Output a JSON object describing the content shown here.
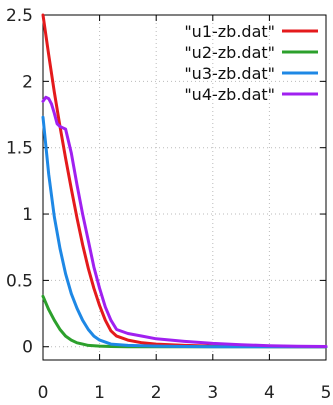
{
  "chart_data": {
    "type": "line",
    "title": "",
    "xlabel": "",
    "ylabel": "",
    "xlim": [
      0,
      5
    ],
    "ylim": [
      -0.1,
      2.5
    ],
    "grid": true,
    "legend_position": "top-right",
    "x_ticks": [
      {
        "value": 0,
        "label": "0"
      },
      {
        "value": 1,
        "label": "1"
      },
      {
        "value": 2,
        "label": "2"
      },
      {
        "value": 3,
        "label": "3"
      },
      {
        "value": 4,
        "label": "4"
      },
      {
        "value": 5,
        "label": "5"
      }
    ],
    "y_ticks": [
      {
        "value": 0,
        "label": "0"
      },
      {
        "value": 0.5,
        "label": "0.5"
      },
      {
        "value": 1,
        "label": "1"
      },
      {
        "value": 1.5,
        "label": "1.5"
      },
      {
        "value": 2,
        "label": "2"
      },
      {
        "value": 2.5,
        "label": "2.5"
      }
    ],
    "series": [
      {
        "name": "\"u1-zb.dat\"",
        "color": "#e41a1c",
        "x": [
          0,
          0.1,
          0.2,
          0.3,
          0.4,
          0.5,
          0.6,
          0.7,
          0.8,
          0.9,
          1.0,
          1.1,
          1.2,
          1.3,
          1.5,
          1.75,
          2.0,
          2.5,
          3.0,
          3.5,
          4.0,
          4.5,
          5.0
        ],
        "values": [
          2.5,
          2.2,
          1.92,
          1.66,
          1.42,
          1.19,
          0.97,
          0.77,
          0.59,
          0.44,
          0.31,
          0.2,
          0.12,
          0.08,
          0.05,
          0.03,
          0.02,
          0.01,
          0.005,
          0.002,
          0.001,
          0.0,
          0.0
        ]
      },
      {
        "name": "\"u2-zb.dat\"",
        "color": "#2ca02c",
        "x": [
          0,
          0.1,
          0.2,
          0.3,
          0.4,
          0.5,
          0.6,
          0.7,
          0.8,
          1.0,
          1.2,
          1.5,
          2.0,
          3.0,
          4.0,
          5.0
        ],
        "values": [
          0.38,
          0.28,
          0.2,
          0.13,
          0.08,
          0.05,
          0.03,
          0.02,
          0.01,
          0.005,
          0.002,
          0.0,
          0.0,
          0.0,
          0.0,
          0.0
        ]
      },
      {
        "name": "\"u3-zb.dat\"",
        "color": "#1e88e5",
        "x": [
          0,
          0.1,
          0.2,
          0.3,
          0.4,
          0.5,
          0.6,
          0.7,
          0.8,
          0.9,
          1.0,
          1.2,
          1.5,
          2.0,
          2.5,
          3.0,
          4.0,
          5.0
        ],
        "values": [
          1.73,
          1.3,
          0.98,
          0.74,
          0.55,
          0.4,
          0.29,
          0.2,
          0.13,
          0.08,
          0.05,
          0.02,
          0.01,
          0.005,
          0.002,
          0.0,
          0.0,
          0.0
        ]
      },
      {
        "name": "\"u4-zb.dat\"",
        "color": "#a020f0",
        "x": [
          0,
          0.05,
          0.1,
          0.15,
          0.2,
          0.25,
          0.3,
          0.35,
          0.4,
          0.5,
          0.6,
          0.7,
          0.8,
          0.9,
          1.0,
          1.1,
          1.2,
          1.3,
          1.5,
          1.75,
          2.0,
          2.5,
          3.0,
          3.5,
          4.0,
          4.5,
          5.0
        ],
        "values": [
          1.85,
          1.88,
          1.87,
          1.83,
          1.76,
          1.68,
          1.66,
          1.65,
          1.64,
          1.46,
          1.22,
          1.0,
          0.8,
          0.6,
          0.44,
          0.3,
          0.2,
          0.13,
          0.1,
          0.08,
          0.06,
          0.04,
          0.025,
          0.015,
          0.008,
          0.004,
          0.002
        ]
      }
    ]
  }
}
